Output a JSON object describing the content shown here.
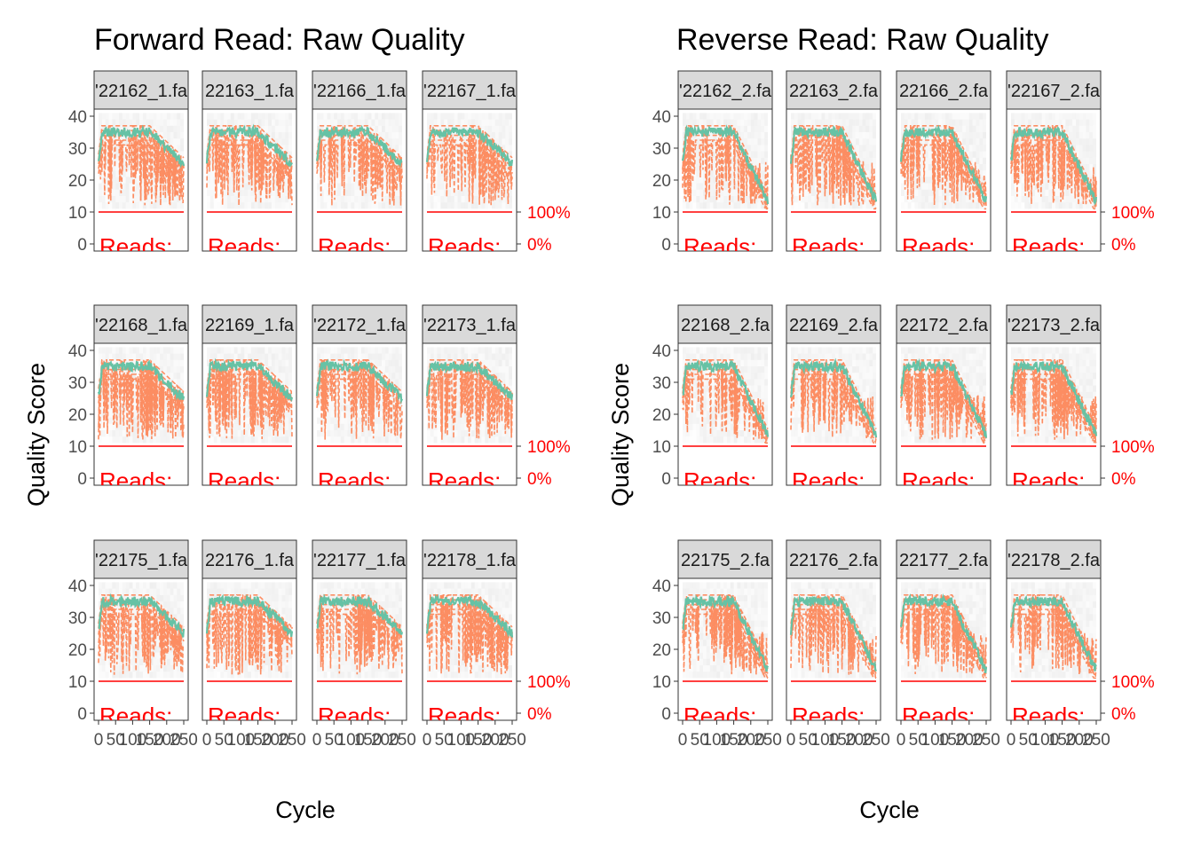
{
  "chart_data": [
    {
      "type": "line",
      "title": "Forward Read: Raw Quality",
      "xlabel": "Cycle",
      "ylabel": "Quality Score",
      "ylim": [
        0,
        40
      ],
      "y_ticks": [
        0,
        10,
        20,
        30,
        40
      ],
      "x_tick_labels": [
        "0",
        "50",
        "100",
        "150",
        "200",
        "250"
      ],
      "xlim": [
        0,
        250
      ],
      "right_axis_labels": [
        "100%",
        "0%"
      ],
      "facet_text": "Reads:",
      "facets": [
        "'22162_1.fa",
        "22163_1.fa",
        "'22166_1.fa",
        "'22167_1.fa",
        "'22168_1.fa",
        "22169_1.fa",
        "'22172_1.fa",
        "'22173_1.fa",
        "'22175_1.fa",
        "22176_1.fa",
        "'22177_1.fa",
        "'22178_1.fa"
      ]
    },
    {
      "type": "line",
      "title": "Reverse Read: Raw Quality",
      "xlabel": "Cycle",
      "ylabel": "Quality Score",
      "ylim": [
        0,
        40
      ],
      "y_ticks": [
        0,
        10,
        20,
        30,
        40
      ],
      "x_tick_labels": [
        "0",
        "50",
        "100",
        "150",
        "200",
        "250"
      ],
      "xlim": [
        0,
        250
      ],
      "right_axis_labels": [
        "100%",
        "0%"
      ],
      "facet_text": "Reads:",
      "facets": [
        "'22162_2.fa",
        "22163_2.fa",
        "22166_2.fa",
        "'22167_2.fa",
        "22168_2.fa",
        "22169_2.fa",
        "22172_2.fa",
        "'22173_2.fa",
        "22175_2.fa",
        "22176_2.fa",
        "22177_2.fa",
        "'22178_2.fa"
      ]
    }
  ],
  "colors": {
    "mean_line": "#66c2a5",
    "quantile_line": "#fc8d62",
    "reads_line": "#ff0000",
    "strip_bg": "#d9d9d9",
    "heat": "#e8e8e8"
  }
}
